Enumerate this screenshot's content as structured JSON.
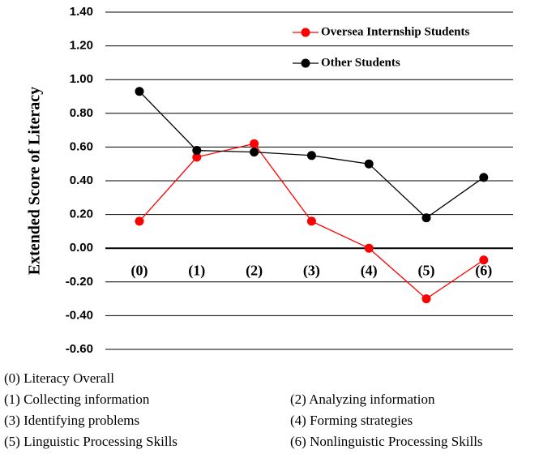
{
  "chart_data": {
    "type": "line",
    "y_label": "Extended Score of Literacy",
    "categories": [
      "(0)",
      "(1)",
      "(2)",
      "(3)",
      "(4)",
      "(5)",
      "(6)"
    ],
    "series": [
      {
        "name": "Oversea Internship Students",
        "color": "#ff0000",
        "values": [
          0.16,
          0.54,
          0.62,
          0.16,
          0.0,
          -0.3,
          -0.07
        ]
      },
      {
        "name": "Other Students",
        "color": "#000000",
        "values": [
          0.93,
          0.58,
          0.57,
          0.55,
          0.5,
          0.18,
          0.42
        ]
      }
    ],
    "ylim": [
      -0.6,
      1.4
    ],
    "yticks": [
      {
        "value": -0.6,
        "label": "-0.60"
      },
      {
        "value": -0.4,
        "label": "-0.40"
      },
      {
        "value": -0.2,
        "label": "-0.20"
      },
      {
        "value": 0,
        "label": "0.00"
      },
      {
        "value": 0.2,
        "label": "0.20"
      },
      {
        "value": 0.4,
        "label": "0.40"
      },
      {
        "value": 0.6,
        "label": "0.60"
      },
      {
        "value": 0.8,
        "label": "0.80"
      },
      {
        "value": 1.0,
        "label": "1.00"
      },
      {
        "value": 1.2,
        "label": "1.20"
      },
      {
        "value": 1.4,
        "label": "1.40"
      }
    ],
    "grid": true,
    "legend": "upper right",
    "notes": [
      [
        "(0) Literacy Overall"
      ],
      [
        "(1) Collecting information",
        "(2) Analyzing information"
      ],
      [
        "(3) Identifying problems",
        "(4) Forming strategies"
      ],
      [
        "(5) Linguistic Processing Skills",
        "(6) Nonlinguistic Processing Skills"
      ]
    ]
  }
}
